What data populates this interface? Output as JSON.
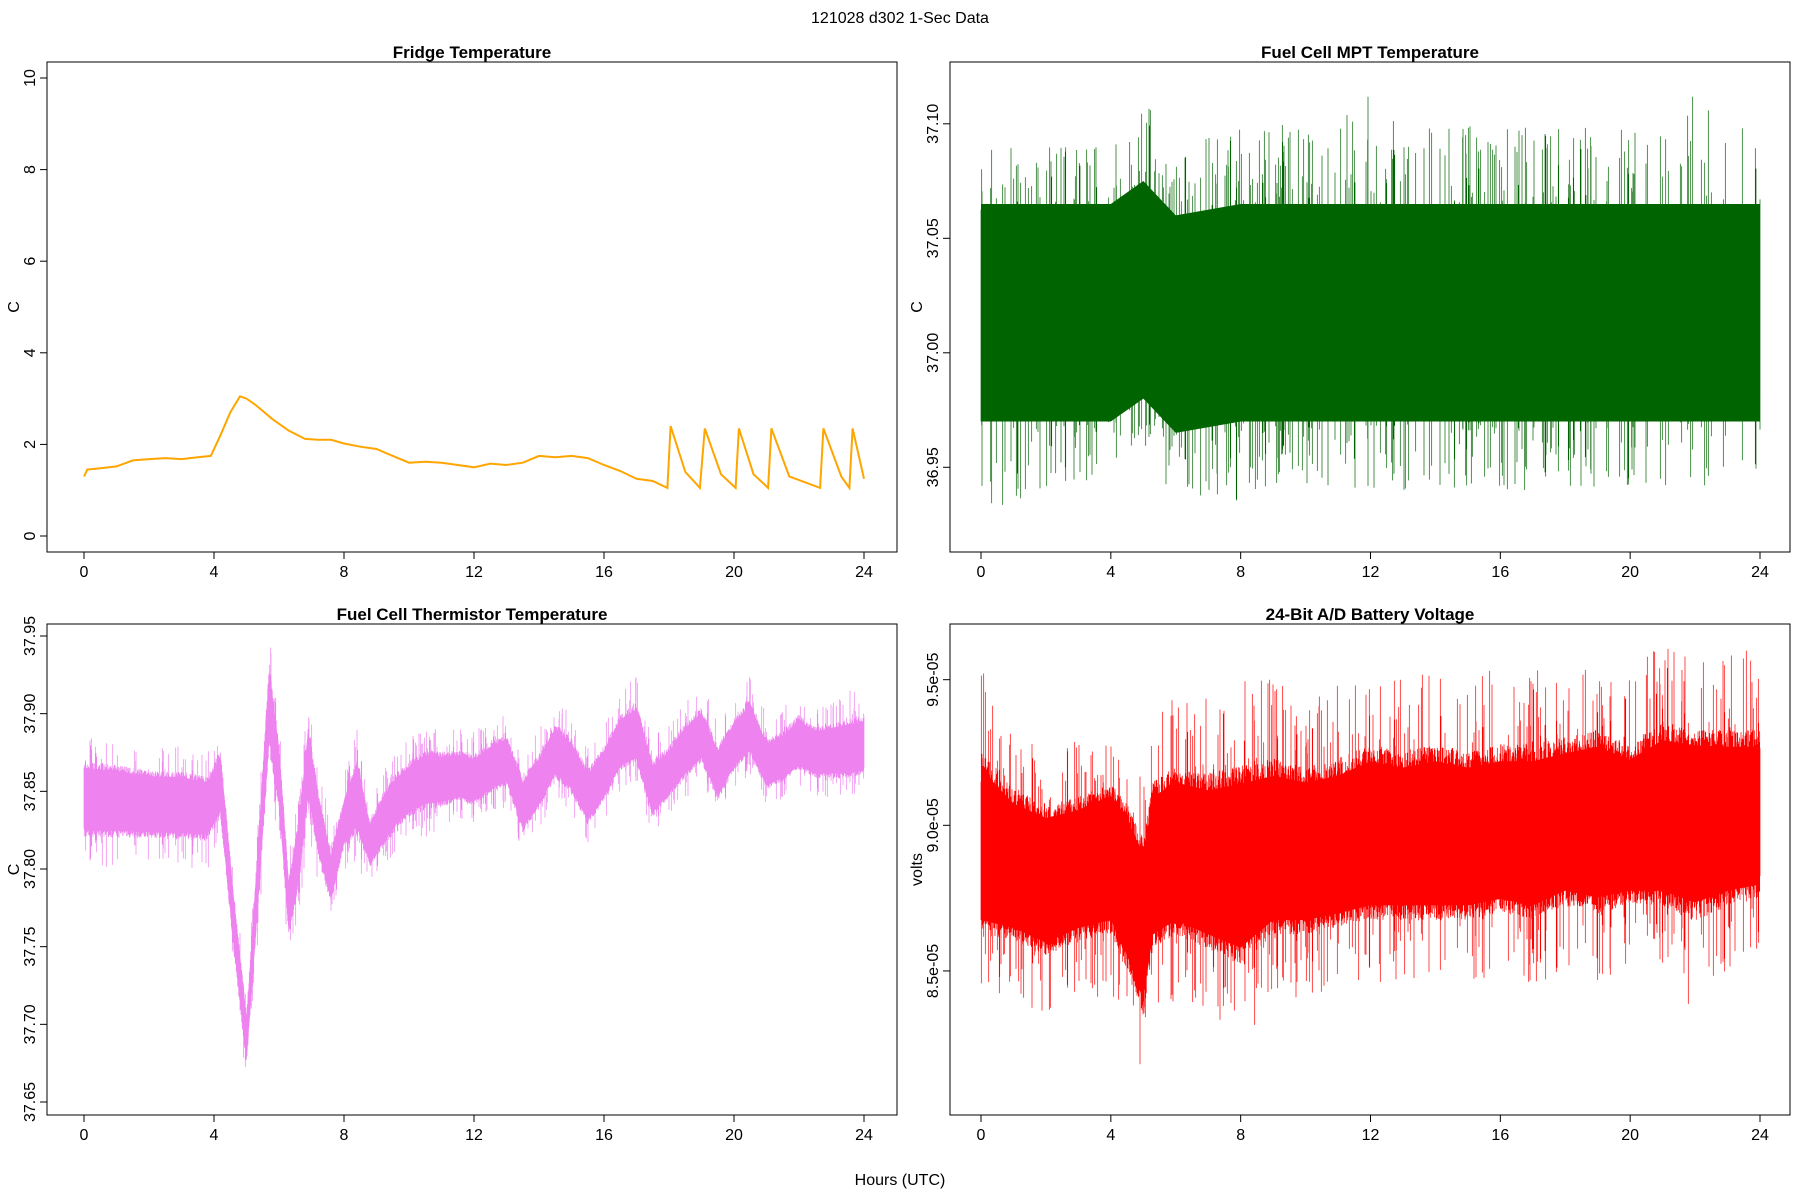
{
  "figure": {
    "suptitle": "121028   d302   1-Sec Data",
    "xlabel": "Hours (UTC)"
  },
  "chart_data": [
    {
      "type": "line",
      "title": "Fridge Temperature",
      "xlabel": "",
      "ylabel": "C",
      "color": "#FFA500",
      "xlim": [
        0,
        24
      ],
      "ylim": [
        0,
        10
      ],
      "xticks": [
        0,
        4,
        8,
        12,
        16,
        20,
        24
      ],
      "xtick_labels": [
        "0",
        "4",
        "8",
        "12",
        "16",
        "20",
        "24"
      ],
      "yticks": [
        0,
        2,
        4,
        6,
        8,
        10
      ],
      "ytick_labels": [
        "0",
        "2",
        "4",
        "6",
        "8",
        "10"
      ],
      "grid": false,
      "series": [
        {
          "x": [
            0,
            0.1,
            0.5,
            1,
            1.5,
            2,
            2.5,
            3,
            3.5,
            3.9,
            4.2,
            4.5,
            4.8,
            5.0,
            5.3,
            5.8,
            6.3,
            6.8,
            7.2,
            7.6,
            8,
            8.5,
            9,
            9.5,
            10,
            10.5,
            11,
            11.5,
            12,
            12.5,
            13,
            13.5,
            14,
            14.5,
            15,
            15.5,
            16,
            16.5,
            17,
            17.5,
            17.95,
            18.05,
            18.5,
            18.95,
            19.1,
            19.6,
            20.05,
            20.15,
            20.6,
            21.05,
            21.15,
            21.7,
            22.65,
            22.75,
            23.3,
            23.55,
            23.65,
            24
          ],
          "y": [
            1.3,
            1.45,
            1.48,
            1.52,
            1.65,
            1.68,
            1.7,
            1.68,
            1.72,
            1.75,
            2.2,
            2.7,
            3.05,
            3.0,
            2.85,
            2.55,
            2.3,
            2.12,
            2.1,
            2.1,
            2.02,
            1.95,
            1.9,
            1.75,
            1.6,
            1.62,
            1.6,
            1.55,
            1.5,
            1.58,
            1.55,
            1.6,
            1.75,
            1.72,
            1.75,
            1.7,
            1.55,
            1.42,
            1.25,
            1.2,
            1.05,
            2.4,
            1.4,
            1.05,
            2.35,
            1.35,
            1.05,
            2.35,
            1.35,
            1.05,
            2.35,
            1.3,
            1.05,
            2.35,
            1.3,
            1.05,
            2.35,
            1.25
          ]
        }
      ]
    },
    {
      "type": "line",
      "title": "Fuel Cell MPT Temperature",
      "xlabel": "",
      "ylabel": "C",
      "color": "#006400",
      "xlim": [
        0,
        24
      ],
      "ylim": [
        36.92,
        37.12
      ],
      "xticks": [
        0,
        4,
        8,
        12,
        16,
        20,
        24
      ],
      "xtick_labels": [
        "0",
        "4",
        "8",
        "12",
        "16",
        "20",
        "24"
      ],
      "yticks": [
        36.95,
        37.0,
        37.05,
        37.1
      ],
      "ytick_labels": [
        "36.95",
        "37.00",
        "37.05",
        "37.10"
      ],
      "grid": false,
      "series": [
        {
          "x": [
            0,
            2,
            4,
            5,
            6,
            8,
            10,
            12,
            14,
            16,
            18,
            20,
            22,
            24
          ],
          "y_center": [
            37.015,
            37.015,
            37.015,
            37.02,
            37.012,
            37.015,
            37.015,
            37.015,
            37.015,
            37.015,
            37.015,
            37.015,
            37.015,
            37.015
          ],
          "y_core_low": [
            36.97,
            36.97,
            36.97,
            36.98,
            36.965,
            36.97,
            36.97,
            36.97,
            36.97,
            36.97,
            36.97,
            36.97,
            36.97,
            36.97
          ],
          "y_core_high": [
            37.065,
            37.065,
            37.065,
            37.075,
            37.06,
            37.065,
            37.065,
            37.065,
            37.065,
            37.065,
            37.065,
            37.065,
            37.065,
            37.065
          ],
          "y_min": [
            36.93,
            36.94,
            36.94,
            36.96,
            36.935,
            36.935,
            36.94,
            36.94,
            36.94,
            36.94,
            36.94,
            36.94,
            36.94,
            36.945
          ],
          "y_max": [
            37.09,
            37.09,
            37.09,
            37.11,
            37.095,
            37.1,
            37.1,
            37.118,
            37.1,
            37.1,
            37.1,
            37.1,
            37.115,
            37.1
          ]
        }
      ]
    },
    {
      "type": "line",
      "title": "Fuel Cell Thermistor Temperature",
      "xlabel": "",
      "ylabel": "C",
      "color": "#EE82EE",
      "xlim": [
        0,
        24
      ],
      "ylim": [
        37.65,
        37.95
      ],
      "xticks": [
        0,
        4,
        8,
        12,
        16,
        20,
        24
      ],
      "xtick_labels": [
        "0",
        "4",
        "8",
        "12",
        "16",
        "20",
        "24"
      ],
      "yticks": [
        37.65,
        37.7,
        37.75,
        37.8,
        37.85,
        37.9,
        37.95
      ],
      "ytick_labels": [
        "37.65",
        "37.70",
        "37.75",
        "37.80",
        "37.85",
        "37.90",
        "37.95"
      ],
      "grid": false,
      "series": [
        {
          "x": [
            0,
            1,
            2,
            3,
            3.8,
            4.2,
            4.6,
            5.0,
            5.3,
            5.7,
            6.0,
            6.3,
            6.6,
            6.9,
            7.2,
            7.6,
            8.0,
            8.4,
            8.8,
            9.2,
            9.6,
            10,
            10.5,
            11,
            11.5,
            12,
            12.5,
            13,
            13.5,
            14,
            14.5,
            15,
            15.5,
            16,
            16.5,
            17,
            17.5,
            18,
            18.5,
            19,
            19.5,
            20,
            20.5,
            21,
            21.5,
            22,
            22.5,
            23,
            23.5,
            24
          ],
          "y_center": [
            37.845,
            37.845,
            37.843,
            37.842,
            37.84,
            37.855,
            37.77,
            37.69,
            37.78,
            37.91,
            37.86,
            37.775,
            37.81,
            37.87,
            37.83,
            37.79,
            37.83,
            37.85,
            37.815,
            37.83,
            37.845,
            37.85,
            37.86,
            37.858,
            37.86,
            37.855,
            37.865,
            37.87,
            37.84,
            37.855,
            37.875,
            37.865,
            37.845,
            37.86,
            37.88,
            37.885,
            37.85,
            37.86,
            37.875,
            37.885,
            37.86,
            37.88,
            37.89,
            37.865,
            37.87,
            37.88,
            37.875,
            37.875,
            37.875,
            37.875
          ],
          "y_min": [
            37.8,
            37.8,
            37.8,
            37.8,
            37.8,
            37.815,
            37.73,
            37.66,
            37.74,
            37.85,
            37.82,
            37.74,
            37.77,
            37.82,
            37.79,
            37.77,
            37.8,
            37.8,
            37.79,
            37.8,
            37.81,
            37.82,
            37.82,
            37.825,
            37.83,
            37.83,
            37.835,
            37.84,
            37.81,
            37.825,
            37.845,
            37.835,
            37.815,
            37.83,
            37.85,
            37.855,
            37.82,
            37.835,
            37.845,
            37.855,
            37.83,
            37.85,
            37.86,
            37.84,
            37.845,
            37.85,
            37.845,
            37.845,
            37.845,
            37.85
          ],
          "y_max": [
            37.89,
            37.885,
            37.88,
            37.88,
            37.875,
            37.895,
            37.8,
            37.72,
            37.82,
            37.95,
            37.9,
            37.81,
            37.85,
            37.91,
            37.87,
            37.83,
            37.86,
            37.89,
            37.845,
            37.865,
            37.875,
            37.885,
            37.89,
            37.89,
            37.89,
            37.89,
            37.895,
            37.9,
            37.875,
            37.89,
            37.91,
            37.9,
            37.88,
            37.895,
            37.915,
            37.925,
            37.885,
            37.895,
            37.91,
            37.92,
            37.895,
            37.91,
            37.925,
            37.9,
            37.905,
            37.915,
            37.905,
            37.91,
            37.915,
            37.92
          ]
        }
      ]
    },
    {
      "type": "line",
      "title": "24-Bit A/D Battery Voltage",
      "xlabel": "",
      "ylabel": "volts",
      "color": "#FF0000",
      "xlim": [
        0,
        24
      ],
      "ylim": [
        8.05e-05,
        9.65e-05
      ],
      "xticks": [
        0,
        4,
        8,
        12,
        16,
        20,
        24
      ],
      "xtick_labels": [
        "0",
        "4",
        "8",
        "12",
        "16",
        "20",
        "24"
      ],
      "yticks": [
        8.5e-05,
        9e-05,
        9.5e-05
      ],
      "ytick_labels": [
        "8.5e-05",
        "9.0e-05",
        "9.5e-05"
      ],
      "grid": false,
      "series": [
        {
          "x": [
            0,
            1,
            2,
            3,
            4,
            4.5,
            5.0,
            5.3,
            6,
            7,
            8,
            9,
            10,
            11,
            12,
            13,
            14,
            15,
            16,
            17,
            18,
            19,
            20,
            21,
            22,
            23,
            24
          ],
          "y_center": [
            8.9e-05,
            8.85e-05,
            8.8e-05,
            8.85e-05,
            8.9e-05,
            8.8e-05,
            8.65e-05,
            8.85e-05,
            8.9e-05,
            8.85e-05,
            8.85e-05,
            8.9e-05,
            8.9e-05,
            8.9e-05,
            8.95e-05,
            8.95e-05,
            8.95e-05,
            8.95e-05,
            8.95e-05,
            8.95e-05,
            9e-05,
            9e-05,
            9e-05,
            9e-05,
            9.05e-05,
            9e-05,
            9e-05
          ],
          "y_min": [
            8.4e-05,
            8.4e-05,
            8.35e-05,
            8.4e-05,
            8.4e-05,
            8.25e-05,
            8.1e-05,
            8.35e-05,
            8.4e-05,
            8.35e-05,
            8.25e-05,
            8.4e-05,
            8.4e-05,
            8.45e-05,
            8.45e-05,
            8.45e-05,
            8.45e-05,
            8.45e-05,
            8.5e-05,
            8.45e-05,
            8.5e-05,
            8.45e-05,
            8.5e-05,
            8.5e-05,
            8.35e-05,
            8.5e-05,
            8.55e-05
          ],
          "y_max": [
            9.55e-05,
            9.35e-05,
            9.3e-05,
            9.3e-05,
            9.35e-05,
            9.3e-05,
            9.2e-05,
            9.4e-05,
            9.45e-05,
            9.45e-05,
            9.5e-05,
            9.5e-05,
            9.45e-05,
            9.5e-05,
            9.55e-05,
            9.5e-05,
            9.55e-05,
            9.5e-05,
            9.55e-05,
            9.55e-05,
            9.55e-05,
            9.6e-05,
            9.5e-05,
            9.65e-05,
            9.55e-05,
            9.6e-05,
            9.6e-05
          ]
        }
      ]
    }
  ]
}
